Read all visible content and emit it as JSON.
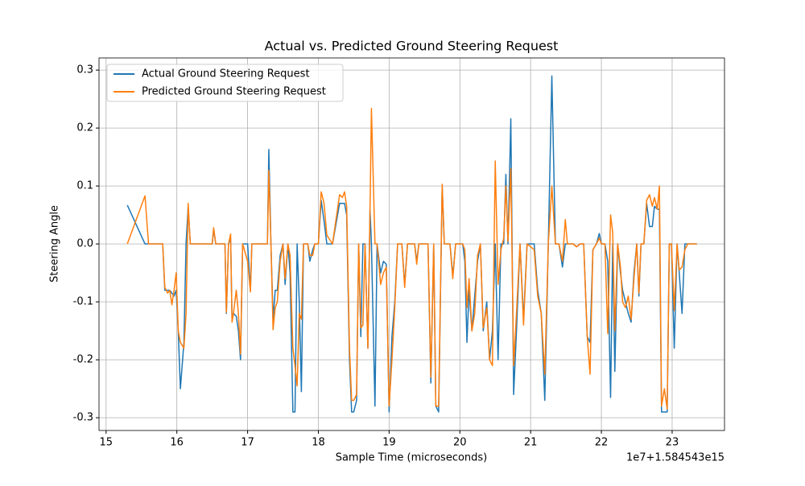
{
  "chart_data": {
    "type": "line",
    "title": "Actual vs. Predicted Ground Steering Request",
    "x_label": "Sample Time (microseconds)",
    "y_label": "Steering Angle",
    "x_offset_label": "1e7+1.584543e15",
    "x": [
      15.3,
      15.55,
      15.6,
      15.8,
      15.83,
      15.87,
      15.9,
      15.93,
      15.96,
      15.99,
      16.02,
      16.05,
      16.1,
      16.13,
      16.16,
      16.19,
      16.5,
      16.52,
      16.55,
      16.68,
      16.7,
      16.73,
      16.76,
      16.78,
      16.8,
      16.84,
      16.87,
      16.9,
      16.93,
      17.0,
      17.04,
      17.06,
      17.28,
      17.3,
      17.33,
      17.36,
      17.39,
      17.42,
      17.46,
      17.5,
      17.53,
      17.57,
      17.6,
      17.64,
      17.67,
      17.7,
      17.73,
      17.76,
      17.79,
      17.85,
      17.88,
      17.92,
      17.95,
      18.0,
      18.04,
      18.08,
      18.12,
      18.2,
      18.3,
      18.34,
      18.37,
      18.4,
      18.44,
      18.47,
      18.5,
      18.54,
      18.57,
      18.6,
      18.63,
      18.66,
      18.7,
      18.73,
      18.75,
      18.8,
      18.83,
      18.88,
      18.92,
      18.96,
      19.0,
      19.04,
      19.08,
      19.12,
      19.18,
      19.22,
      19.26,
      19.36,
      19.39,
      19.42,
      19.55,
      19.59,
      19.63,
      19.66,
      19.7,
      19.75,
      19.78,
      19.86,
      19.9,
      19.94,
      20.04,
      20.07,
      20.1,
      20.13,
      20.17,
      20.21,
      20.25,
      20.29,
      20.33,
      20.38,
      20.42,
      20.46,
      20.5,
      20.54,
      20.58,
      20.62,
      20.65,
      20.68,
      20.72,
      20.76,
      20.8,
      20.85,
      20.9,
      20.95,
      21.05,
      21.1,
      21.15,
      21.2,
      21.25,
      21.3,
      21.35,
      21.4,
      21.45,
      21.49,
      21.52,
      21.6,
      21.65,
      21.7,
      21.75,
      21.8,
      21.84,
      21.88,
      21.93,
      21.97,
      22.0,
      22.05,
      22.09,
      22.13,
      22.16,
      22.19,
      22.23,
      22.27,
      22.3,
      22.34,
      22.38,
      22.42,
      22.46,
      22.5,
      22.53,
      22.56,
      22.6,
      22.64,
      22.68,
      22.72,
      22.75,
      22.79,
      22.82,
      22.85,
      22.89,
      22.93,
      22.96,
      22.99,
      23.03,
      23.07,
      23.1,
      23.14,
      23.18,
      23.22,
      23.35
    ],
    "series": [
      {
        "name": "Actual Ground Steering Request",
        "color": "#1f77b4",
        "values": [
          0.067,
          0,
          0,
          0,
          -0.08,
          -0.08,
          -0.08,
          -0.085,
          -0.09,
          -0.08,
          -0.15,
          -0.25,
          -0.17,
          0,
          0.065,
          0,
          0,
          0.025,
          0,
          0,
          -0.12,
          0,
          0.01,
          -0.13,
          -0.12,
          -0.125,
          -0.15,
          -0.2,
          0,
          0,
          -0.08,
          0,
          0,
          0.163,
          0,
          -0.13,
          -0.08,
          -0.08,
          -0.02,
          0,
          -0.07,
          0,
          -0.05,
          -0.29,
          -0.29,
          0,
          -0.1,
          -0.255,
          0,
          0,
          -0.03,
          -0.01,
          0,
          0,
          0.075,
          0.04,
          0,
          0,
          0.07,
          0.07,
          0.07,
          0.05,
          -0.2,
          -0.29,
          -0.29,
          -0.27,
          0,
          -0.16,
          0,
          0,
          -0.18,
          0.06,
          0,
          -0.28,
          0,
          -0.05,
          -0.03,
          -0.035,
          -0.29,
          -0.16,
          -0.1,
          0,
          0,
          -0.07,
          0,
          0,
          -0.03,
          0,
          0,
          -0.24,
          0,
          -0.28,
          -0.29,
          0.1,
          0,
          0,
          -0.055,
          0,
          0,
          -0.03,
          -0.17,
          -0.08,
          -0.15,
          -0.09,
          -0.03,
          0,
          -0.15,
          -0.1,
          -0.2,
          -0.15,
          0,
          -0.2,
          0,
          0,
          0.12,
          0,
          0.216,
          -0.26,
          -0.15,
          0,
          -0.13,
          0,
          0,
          -0.08,
          -0.12,
          -0.27,
          0,
          0.29,
          0,
          0,
          -0.04,
          0,
          0,
          0,
          -0.005,
          0,
          0,
          -0.16,
          -0.17,
          -0.01,
          0,
          0.018,
          0,
          0,
          -0.03,
          -0.265,
          0,
          -0.22,
          0,
          -0.05,
          -0.08,
          -0.1,
          -0.12,
          -0.135,
          -0.05,
          0,
          -0.09,
          0,
          0,
          0.07,
          0.03,
          0.03,
          0.065,
          0.06,
          0.06,
          -0.29,
          -0.29,
          -0.29,
          0,
          0,
          -0.18,
          0,
          -0.05,
          -0.12,
          0,
          0,
          0
        ]
      },
      {
        "name": "Predicted Ground Steering Request",
        "color": "#ff7f0e",
        "values": [
          0,
          0.083,
          0,
          0,
          -0.075,
          -0.085,
          -0.08,
          -0.105,
          -0.08,
          -0.05,
          -0.15,
          -0.17,
          -0.18,
          -0.12,
          0.07,
          0,
          0,
          0.028,
          0,
          0,
          -0.118,
          0,
          0.017,
          -0.135,
          -0.12,
          -0.08,
          -0.12,
          -0.19,
          0,
          -0.03,
          -0.083,
          0,
          0,
          0.127,
          0,
          -0.148,
          -0.11,
          -0.1,
          -0.03,
          0,
          -0.06,
          0,
          -0.02,
          -0.18,
          -0.21,
          -0.245,
          -0.12,
          -0.13,
          0,
          0,
          -0.02,
          -0.02,
          0,
          0,
          0.09,
          0.07,
          0.015,
          0,
          0.085,
          0.08,
          0.09,
          0.065,
          -0.18,
          -0.27,
          -0.27,
          -0.26,
          0,
          -0.145,
          -0.14,
          0,
          -0.18,
          0.055,
          0.234,
          0,
          0,
          -0.07,
          -0.05,
          -0.04,
          -0.28,
          -0.2,
          -0.11,
          0,
          0,
          -0.075,
          0,
          0,
          -0.035,
          0,
          0,
          -0.23,
          0,
          -0.28,
          -0.28,
          0.103,
          0,
          0,
          -0.06,
          0,
          0,
          -0.01,
          -0.11,
          -0.06,
          -0.15,
          -0.12,
          -0.02,
          0,
          -0.145,
          -0.11,
          -0.2,
          -0.21,
          0.143,
          -0.07,
          -0.01,
          0.01,
          0.1,
          0.004,
          0.13,
          -0.21,
          -0.12,
          0,
          -0.14,
          0,
          -0.01,
          -0.09,
          -0.12,
          -0.225,
          0,
          0.1,
          0,
          0,
          -0.03,
          0.042,
          0,
          0,
          -0.005,
          0,
          0,
          -0.16,
          -0.225,
          -0.01,
          0,
          0.01,
          0,
          0,
          -0.155,
          0.05,
          0.02,
          -0.15,
          0,
          -0.04,
          -0.1,
          -0.11,
          -0.09,
          -0.13,
          -0.06,
          0,
          -0.085,
          0,
          0,
          0.075,
          0.085,
          0.065,
          0.08,
          0.06,
          0.1,
          -0.28,
          -0.25,
          -0.285,
          0,
          0,
          -0.115,
          0,
          -0.045,
          -0.04,
          -0.01,
          0,
          0
        ]
      }
    ],
    "xlim": [
      14.9,
      23.74
    ],
    "ylim": [
      -0.322,
      0.321
    ],
    "xticks": [
      15,
      16,
      17,
      18,
      19,
      20,
      21,
      22,
      23
    ],
    "yticks": [
      -0.3,
      -0.2,
      -0.1,
      {
        "value": 0,
        "label": "0.0"
      },
      0.1,
      0.2,
      0.3
    ],
    "grid": true,
    "legend": "upper-left"
  }
}
